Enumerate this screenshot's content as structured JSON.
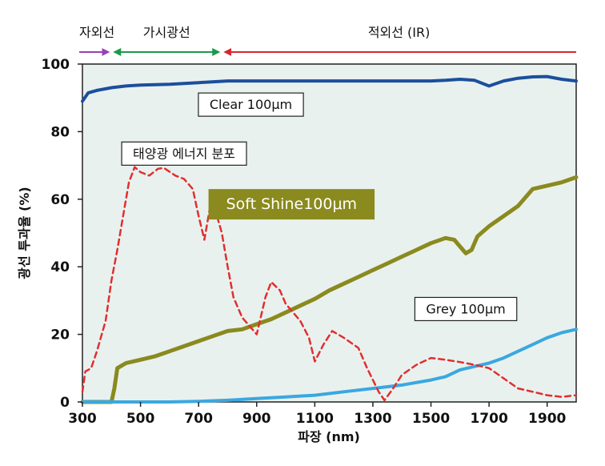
{
  "chart_data": {
    "type": "line",
    "xlabel": "파장 (nm)",
    "ylabel": "광선 투과율 (%)",
    "xlim": [
      300,
      2000
    ],
    "ylim": [
      0,
      100
    ],
    "x_ticks": [
      300,
      500,
      700,
      900,
      1100,
      1300,
      1500,
      1700,
      1900
    ],
    "y_ticks": [
      0,
      20,
      40,
      60,
      80,
      100
    ],
    "grid": false,
    "bands": [
      {
        "label": "자외선",
        "from": 300,
        "to": 400,
        "color": "#9b3fb5"
      },
      {
        "label": "가시광선",
        "from": 400,
        "to": 780,
        "color": "#1a9a4a"
      },
      {
        "label": "적외선 (IR)",
        "from": 780,
        "to": 2000,
        "color": "#d8262e"
      }
    ],
    "series": [
      {
        "name": "Clear 100μm",
        "color": "#1b4f9c",
        "style": "solid",
        "label_pos": [
          880,
          88
        ],
        "points": [
          [
            300,
            89
          ],
          [
            320,
            91.5
          ],
          [
            350,
            92.2
          ],
          [
            400,
            93
          ],
          [
            450,
            93.5
          ],
          [
            500,
            93.8
          ],
          [
            600,
            94
          ],
          [
            700,
            94.5
          ],
          [
            800,
            95
          ],
          [
            900,
            95
          ],
          [
            1000,
            95
          ],
          [
            1100,
            95
          ],
          [
            1200,
            95
          ],
          [
            1300,
            95
          ],
          [
            1400,
            95
          ],
          [
            1500,
            95
          ],
          [
            1550,
            95.2
          ],
          [
            1600,
            95.5
          ],
          [
            1650,
            95.2
          ],
          [
            1700,
            93.5
          ],
          [
            1750,
            95
          ],
          [
            1800,
            95.8
          ],
          [
            1850,
            96.2
          ],
          [
            1900,
            96.3
          ],
          [
            1950,
            95.5
          ],
          [
            2000,
            95
          ]
        ]
      },
      {
        "name": "태양광 에너지 분포",
        "color": "#e02f2f",
        "style": "dashed",
        "label_pos": [
          650,
          73.5
        ],
        "points": [
          [
            300,
            3
          ],
          [
            310,
            9
          ],
          [
            330,
            10
          ],
          [
            350,
            15
          ],
          [
            380,
            24
          ],
          [
            400,
            36
          ],
          [
            420,
            45
          ],
          [
            440,
            55
          ],
          [
            460,
            65
          ],
          [
            480,
            69.5
          ],
          [
            500,
            68
          ],
          [
            530,
            67
          ],
          [
            560,
            69
          ],
          [
            580,
            69.3
          ],
          [
            620,
            67
          ],
          [
            650,
            66
          ],
          [
            680,
            63
          ],
          [
            700,
            55
          ],
          [
            720,
            48
          ],
          [
            740,
            58
          ],
          [
            760,
            56
          ],
          [
            780,
            50
          ],
          [
            800,
            40
          ],
          [
            820,
            31
          ],
          [
            850,
            25
          ],
          [
            900,
            20
          ],
          [
            930,
            31
          ],
          [
            950,
            35.5
          ],
          [
            980,
            33
          ],
          [
            1000,
            29
          ],
          [
            1050,
            24
          ],
          [
            1080,
            19
          ],
          [
            1100,
            12
          ],
          [
            1130,
            17
          ],
          [
            1160,
            21
          ],
          [
            1200,
            19
          ],
          [
            1250,
            16
          ],
          [
            1280,
            10
          ],
          [
            1320,
            3
          ],
          [
            1340,
            0.5
          ],
          [
            1370,
            4
          ],
          [
            1400,
            8
          ],
          [
            1450,
            11
          ],
          [
            1500,
            13
          ],
          [
            1550,
            12.5
          ],
          [
            1600,
            11.8
          ],
          [
            1650,
            11
          ],
          [
            1700,
            10
          ],
          [
            1750,
            7
          ],
          [
            1800,
            4
          ],
          [
            1850,
            3
          ],
          [
            1900,
            2
          ],
          [
            1950,
            1.5
          ],
          [
            2000,
            2
          ]
        ]
      },
      {
        "name": "Soft Shine100μm",
        "color": "#8a8a1e",
        "style": "solid",
        "label_pos": [
          1020,
          58.5
        ],
        "points": [
          [
            300,
            0
          ],
          [
            380,
            0
          ],
          [
            400,
            0
          ],
          [
            410,
            4
          ],
          [
            420,
            10
          ],
          [
            450,
            11.5
          ],
          [
            500,
            12.5
          ],
          [
            550,
            13.5
          ],
          [
            600,
            15
          ],
          [
            650,
            16.5
          ],
          [
            700,
            18
          ],
          [
            750,
            19.5
          ],
          [
            800,
            21
          ],
          [
            850,
            21.5
          ],
          [
            900,
            23
          ],
          [
            950,
            24.5
          ],
          [
            1000,
            26.5
          ],
          [
            1050,
            28.5
          ],
          [
            1100,
            30.5
          ],
          [
            1150,
            33
          ],
          [
            1200,
            35
          ],
          [
            1250,
            37
          ],
          [
            1300,
            39
          ],
          [
            1350,
            41
          ],
          [
            1400,
            43
          ],
          [
            1450,
            45
          ],
          [
            1500,
            47
          ],
          [
            1550,
            48.5
          ],
          [
            1580,
            48
          ],
          [
            1600,
            46
          ],
          [
            1620,
            44
          ],
          [
            1640,
            45
          ],
          [
            1660,
            49
          ],
          [
            1700,
            52
          ],
          [
            1750,
            55
          ],
          [
            1800,
            58
          ],
          [
            1850,
            63
          ],
          [
            1900,
            64
          ],
          [
            1950,
            65
          ],
          [
            2000,
            66.5
          ]
        ]
      },
      {
        "name": "Grey 100μm",
        "color": "#3aa8e0",
        "style": "solid",
        "label_pos": [
          1620,
          27.5
        ],
        "points": [
          [
            300,
            0
          ],
          [
            400,
            0
          ],
          [
            500,
            0
          ],
          [
            600,
            0
          ],
          [
            700,
            0.2
          ],
          [
            800,
            0.5
          ],
          [
            900,
            1
          ],
          [
            1000,
            1.5
          ],
          [
            1100,
            2
          ],
          [
            1200,
            3
          ],
          [
            1300,
            4
          ],
          [
            1400,
            5
          ],
          [
            1500,
            6.5
          ],
          [
            1550,
            7.5
          ],
          [
            1600,
            9.5
          ],
          [
            1650,
            10.5
          ],
          [
            1700,
            11.5
          ],
          [
            1750,
            13
          ],
          [
            1800,
            15
          ],
          [
            1850,
            17
          ],
          [
            1900,
            19
          ],
          [
            1950,
            20.5
          ],
          [
            2000,
            21.5
          ]
        ]
      }
    ]
  }
}
